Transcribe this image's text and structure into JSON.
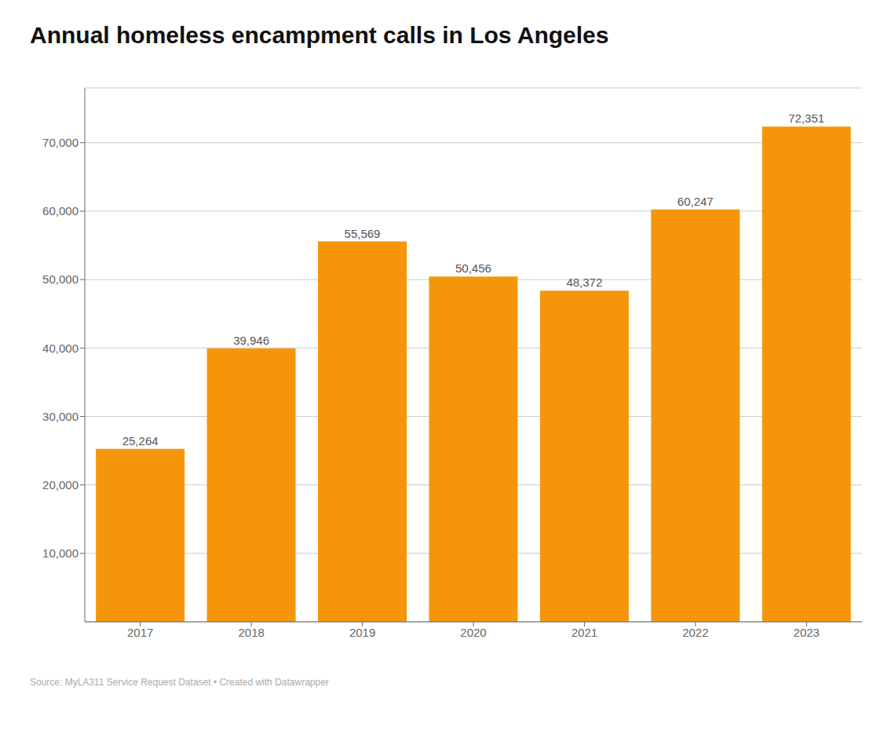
{
  "chart_data": {
    "type": "bar",
    "title": "Annual homeless encampment calls in Los Angeles",
    "source": "Source: MyLA311 Service Request Dataset • Created with Datawrapper",
    "categories": [
      "2017",
      "2018",
      "2019",
      "2020",
      "2021",
      "2022",
      "2023"
    ],
    "values": [
      25264,
      39946,
      55569,
      50456,
      48372,
      60247,
      72351
    ],
    "value_labels": [
      "25,264",
      "39,946",
      "55,569",
      "50,456",
      "48,372",
      "60,247",
      "72,351"
    ],
    "data_labels": true,
    "color": "#F5960A",
    "ylim": [
      0,
      78000
    ],
    "yticks": [
      {
        "value": 10000,
        "label": "10,000"
      },
      {
        "value": 20000,
        "label": "20,000"
      },
      {
        "value": 30000,
        "label": "30,000"
      },
      {
        "value": 40000,
        "label": "40,000"
      },
      {
        "value": 50000,
        "label": "50,000"
      },
      {
        "value": 60000,
        "label": "60,000"
      },
      {
        "value": 70000,
        "label": "70,000"
      }
    ],
    "grid": true
  }
}
